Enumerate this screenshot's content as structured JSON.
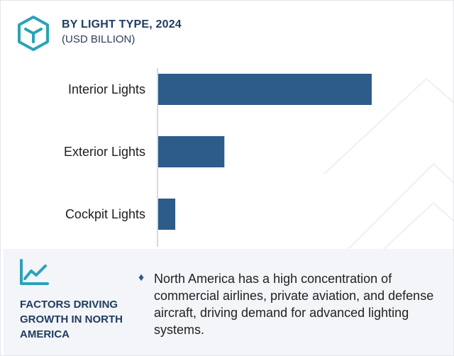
{
  "header": {
    "title": "BY LIGHT TYPE, 2024",
    "subtitle": "(USD BILLION)",
    "icon": "cube-icon"
  },
  "colors": {
    "bar": "#2d5b8a",
    "title": "#1f3b5f",
    "accent": "#2aa3b8",
    "panel_bg": "#f3f5f9"
  },
  "chart_data": {
    "type": "bar",
    "orientation": "horizontal",
    "categories": [
      "Interior Lights",
      "Exterior Lights",
      "Cockpit Lights"
    ],
    "values": [
      10.0,
      3.1,
      0.8
    ],
    "title": "BY LIGHT TYPE, 2024",
    "subtitle": "(USD BILLION)",
    "grid": false,
    "value_axis_labels_shown": false
  },
  "factors": {
    "icon": "growth-chart-icon",
    "title": "FACTORS DRIVING GROWTH IN NORTH AMERICA",
    "bullet_icon": "diamond-icon",
    "items": [
      "North America has a high concentration of commercial airlines, private aviation, and defense aircraft, driving demand for advanced lighting systems."
    ]
  }
}
